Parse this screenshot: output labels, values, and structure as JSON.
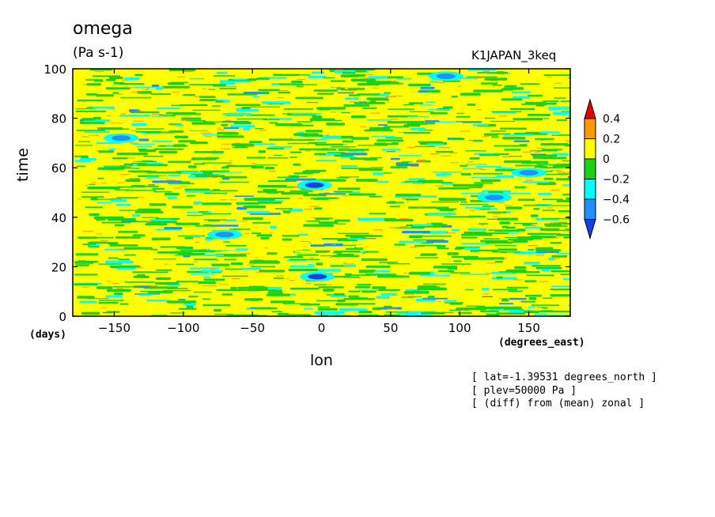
{
  "header": {
    "title": "omega",
    "units": "(Pa s-1)",
    "run": "K1JAPAN_3keq"
  },
  "notes": [
    "[ lat=-1.39531 degrees_north ]",
    "[ plev=50000 Pa ]",
    "[ (diff) from (mean) zonal ]"
  ],
  "chart_data": {
    "type": "heatmap",
    "title": "omega",
    "units": "(Pa s-1)",
    "xlabel": "lon",
    "ylabel": "time",
    "x_unit": "(degrees_east)",
    "y_unit": "(days)",
    "xlim": [
      -180,
      180
    ],
    "ylim": [
      0,
      100
    ],
    "x_ticks": [
      -150,
      -100,
      -50,
      0,
      50,
      100,
      150
    ],
    "x_tick_labels": [
      "−150",
      "−100",
      "−50",
      "0",
      "50",
      "100",
      "150"
    ],
    "y_ticks": [
      0,
      20,
      40,
      60,
      80,
      100
    ],
    "y_tick_labels": [
      "0",
      "20",
      "40",
      "60",
      "80",
      "100"
    ],
    "colorbar": {
      "levels": [
        -0.6,
        -0.4,
        -0.2,
        0,
        0.2,
        0.4
      ],
      "labels": [
        "0.4",
        "0.2",
        "0",
        "−0.2",
        "−0.4",
        "−0.6"
      ],
      "colors": [
        "#1a3fe0",
        "#1e90ff",
        "#00ffff",
        "#19d219",
        "#ffff00",
        "#ff9900",
        "#e80000"
      ],
      "extend": "both"
    },
    "description_dominant_value_range": [
      0,
      0.2
    ],
    "features": [
      {
        "lon": -5,
        "time": 53,
        "value": -0.7
      },
      {
        "lon": -3,
        "time": 16,
        "value": -0.7
      },
      {
        "lon": 90,
        "time": 97,
        "value": -0.6
      },
      {
        "lon": 150,
        "time": 58,
        "value": -0.6
      },
      {
        "lon": -70,
        "time": 33,
        "value": -0.6
      },
      {
        "lon": -145,
        "time": 72,
        "value": -0.5
      },
      {
        "lon": 125,
        "time": 48,
        "value": -0.5
      }
    ]
  },
  "colors": {
    "background": "#ffffff",
    "axes": "#000000"
  }
}
